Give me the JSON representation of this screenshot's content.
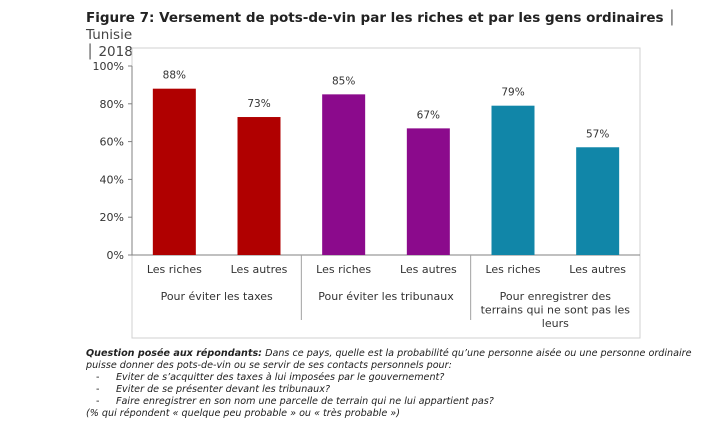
{
  "title": {
    "main": "Figure 7: Versement de pots-de-vin par les riches et par les gens ordinaires",
    "sep1": "│",
    "country": "Tunisie",
    "sep2": "│",
    "year": "2018"
  },
  "chart_data": {
    "type": "bar",
    "ylim": [
      0,
      100
    ],
    "yticks": [
      "0%",
      "20%",
      "40%",
      "60%",
      "80%",
      "100%"
    ],
    "ytick_values": [
      0,
      20,
      40,
      60,
      80,
      100
    ],
    "grid": false,
    "groups": [
      {
        "label": "Pour éviter les taxes",
        "label_lines": [
          "Pour éviter les taxes"
        ],
        "color": "#b00000",
        "bars": [
          {
            "category": "Les riches",
            "value": 88,
            "label": "88%"
          },
          {
            "category": "Les autres",
            "value": 73,
            "label": "73%"
          }
        ]
      },
      {
        "label": "Pour éviter les tribunaux",
        "label_lines": [
          "Pour éviter les tribunaux"
        ],
        "color": "#8b0a8c",
        "bars": [
          {
            "category": "Les riches",
            "value": 85,
            "label": "85%"
          },
          {
            "category": "Les autres",
            "value": 67,
            "label": "67%"
          }
        ]
      },
      {
        "label": "Pour enregistrer des terrains qui ne sont pas les leurs",
        "label_lines": [
          "Pour enregistrer des",
          "terrains qui ne sont pas les",
          "leurs"
        ],
        "color": "#1186a8",
        "bars": [
          {
            "category": "Les riches",
            "value": 79,
            "label": "79%"
          },
          {
            "category": "Les autres",
            "value": 57,
            "label": "57%"
          }
        ]
      }
    ]
  },
  "note": {
    "question_label": "Question posée aux répondants:",
    "question_text": " Dans ce pays, quelle est la probabilité qu’une personne aisée ou une personne ordinaire puisse donner des pots-de-vin ou se servir de ses contacts personnels pour:",
    "items": [
      "Eviter de s’acquitter des taxes à lui imposées par le gouvernement?",
      "Eviter de se présenter devant les tribunaux?",
      "Faire enregistrer en son nom une parcelle de terrain qui ne lui appartient pas?"
    ],
    "footer": "(% qui répondent « quelque peu probable » ou « très probable »)"
  }
}
